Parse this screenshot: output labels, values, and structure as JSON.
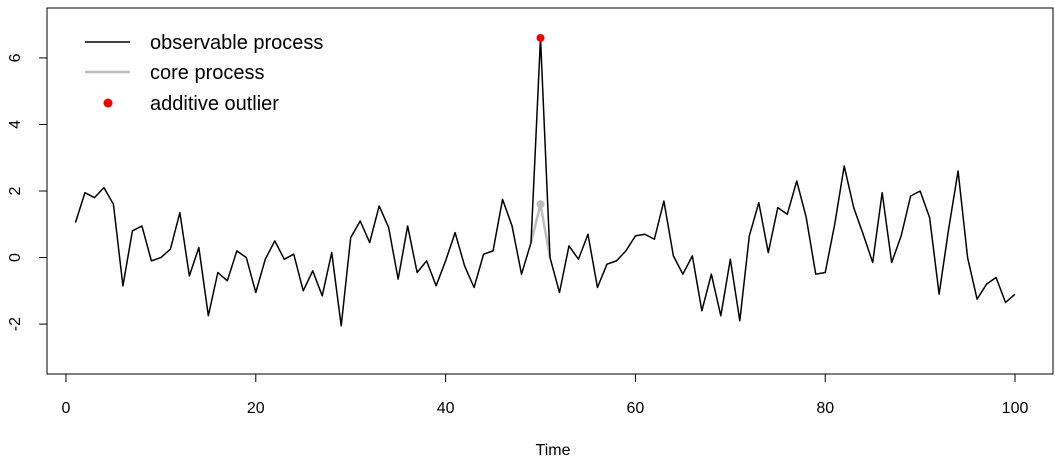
{
  "chart_data": {
    "type": "line",
    "title": "",
    "xlabel": "Time",
    "ylabel": "",
    "xlim": [
      -2,
      104
    ],
    "ylim": [
      -3.5,
      7.5
    ],
    "x_ticks": [
      0,
      20,
      40,
      60,
      80,
      100
    ],
    "y_ticks": [
      -2,
      0,
      2,
      4,
      6
    ],
    "grid": false,
    "legend_position": "top-left",
    "x": [
      1,
      2,
      3,
      4,
      5,
      6,
      7,
      8,
      9,
      10,
      11,
      12,
      13,
      14,
      15,
      16,
      17,
      18,
      19,
      20,
      21,
      22,
      23,
      24,
      25,
      26,
      27,
      28,
      29,
      30,
      31,
      32,
      33,
      34,
      35,
      36,
      37,
      38,
      39,
      40,
      41,
      42,
      43,
      44,
      45,
      46,
      47,
      48,
      49,
      50,
      51,
      52,
      53,
      54,
      55,
      56,
      57,
      58,
      59,
      60,
      61,
      62,
      63,
      64,
      65,
      66,
      67,
      68,
      69,
      70,
      71,
      72,
      73,
      74,
      75,
      76,
      77,
      78,
      79,
      80,
      81,
      82,
      83,
      84,
      85,
      86,
      87,
      88,
      89,
      90,
      91,
      92,
      93,
      94,
      95,
      96,
      97,
      98,
      99,
      100
    ],
    "series": [
      {
        "name": "observable process",
        "color": "#000000",
        "values": [
          1.05,
          1.95,
          1.8,
          2.1,
          1.6,
          -0.85,
          0.8,
          0.95,
          -0.1,
          0.0,
          0.25,
          1.35,
          -0.55,
          0.3,
          -1.75,
          -0.45,
          -0.7,
          0.2,
          0.0,
          -1.05,
          -0.05,
          0.5,
          -0.05,
          0.1,
          -1.0,
          -0.4,
          -1.15,
          0.15,
          -2.05,
          0.6,
          1.1,
          0.45,
          1.55,
          0.9,
          -0.65,
          0.95,
          -0.45,
          -0.1,
          -0.85,
          -0.1,
          0.75,
          -0.25,
          -0.9,
          0.1,
          0.2,
          1.75,
          0.95,
          -0.5,
          0.45,
          6.6,
          0.0,
          -1.05,
          0.35,
          -0.05,
          0.7,
          -0.9,
          -0.2,
          -0.1,
          0.2,
          0.65,
          0.7,
          0.55,
          1.7,
          0.05,
          -0.5,
          0.05,
          -1.6,
          -0.5,
          -1.75,
          -0.05,
          -1.9,
          0.65,
          1.65,
          0.15,
          1.5,
          1.3,
          2.3,
          1.2,
          -0.5,
          -0.45,
          1.0,
          2.75,
          1.5,
          0.7,
          -0.15,
          1.95,
          -0.15,
          0.65,
          1.85,
          2.0,
          1.2,
          -1.1,
          0.85,
          2.6,
          0.0,
          -1.25,
          -0.8,
          -0.6,
          -1.35,
          -1.1
        ]
      },
      {
        "name": "core process",
        "color": "#bebebe",
        "x": [
          49,
          50,
          51
        ],
        "values": [
          0.45,
          1.6,
          0.0
        ]
      }
    ],
    "outliers": [
      {
        "name": "additive outlier",
        "x": 50,
        "y": 6.6,
        "color": "#ee0000"
      }
    ],
    "legend": [
      {
        "label": "observable process",
        "kind": "line",
        "color": "#000000"
      },
      {
        "label": "core process",
        "kind": "line",
        "color": "#bebebe"
      },
      {
        "label": "additive outlier",
        "kind": "point",
        "color": "#ee0000"
      }
    ]
  }
}
